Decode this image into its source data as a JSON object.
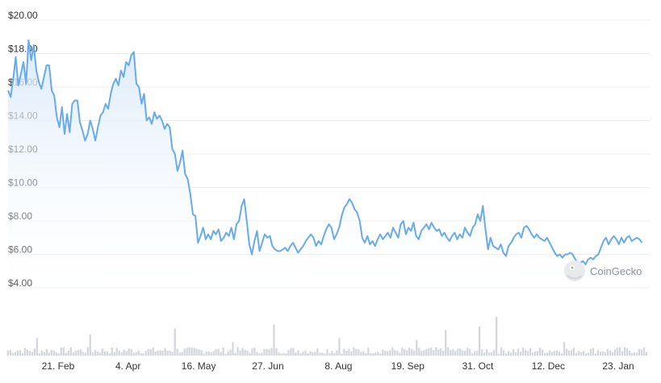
{
  "chart_data": {
    "type": "area",
    "ylim": [
      4,
      20
    ],
    "y_ticks": [
      {
        "value": 20,
        "label": "$20.00"
      },
      {
        "value": 18,
        "label": "$18.00"
      },
      {
        "value": 16,
        "label": "$16.00"
      },
      {
        "value": 14,
        "label": "$14.00"
      },
      {
        "value": 12,
        "label": "$12.00"
      },
      {
        "value": 10,
        "label": "$10.00"
      },
      {
        "value": 8,
        "label": "$8.00"
      },
      {
        "value": 6,
        "label": "$6.00"
      },
      {
        "value": 4,
        "label": "$4.00"
      }
    ],
    "x_ticks": [
      {
        "pos": 0.078,
        "label": "21. Feb"
      },
      {
        "pos": 0.187,
        "label": "4. Apr"
      },
      {
        "pos": 0.297,
        "label": "16. May"
      },
      {
        "pos": 0.405,
        "label": "27. Jun"
      },
      {
        "pos": 0.515,
        "label": "8. Aug"
      },
      {
        "pos": 0.623,
        "label": "19. Sep"
      },
      {
        "pos": 0.732,
        "label": "31. Oct"
      },
      {
        "pos": 0.842,
        "label": "12. Dec"
      },
      {
        "pos": 0.951,
        "label": "23. Jan"
      }
    ],
    "price": [
      [
        0.0,
        15.8
      ],
      [
        0.004,
        15.4
      ],
      [
        0.008,
        16.5
      ],
      [
        0.012,
        17.8
      ],
      [
        0.016,
        16.1
      ],
      [
        0.02,
        16.8
      ],
      [
        0.024,
        17.5
      ],
      [
        0.028,
        16.2
      ],
      [
        0.032,
        18.8
      ],
      [
        0.036,
        17.6
      ],
      [
        0.04,
        18.5
      ],
      [
        0.044,
        17.0
      ],
      [
        0.048,
        16.3
      ],
      [
        0.052,
        15.9
      ],
      [
        0.056,
        16.6
      ],
      [
        0.06,
        17.3
      ],
      [
        0.064,
        17.3
      ],
      [
        0.068,
        15.8
      ],
      [
        0.072,
        15.5
      ],
      [
        0.076,
        14.2
      ],
      [
        0.08,
        13.6
      ],
      [
        0.084,
        14.8
      ],
      [
        0.088,
        13.2
      ],
      [
        0.092,
        14.4
      ],
      [
        0.096,
        13.3
      ],
      [
        0.1,
        15.0
      ],
      [
        0.104,
        15.2
      ],
      [
        0.108,
        15.2
      ],
      [
        0.112,
        13.9
      ],
      [
        0.116,
        13.4
      ],
      [
        0.12,
        12.8
      ],
      [
        0.124,
        13.2
      ],
      [
        0.128,
        14.0
      ],
      [
        0.132,
        13.5
      ],
      [
        0.136,
        12.8
      ],
      [
        0.14,
        13.6
      ],
      [
        0.144,
        14.3
      ],
      [
        0.148,
        14.5
      ],
      [
        0.152,
        15.0
      ],
      [
        0.156,
        14.7
      ],
      [
        0.16,
        15.6
      ],
      [
        0.164,
        16.2
      ],
      [
        0.168,
        16.5
      ],
      [
        0.172,
        16.1
      ],
      [
        0.176,
        17.0
      ],
      [
        0.18,
        16.6
      ],
      [
        0.184,
        17.5
      ],
      [
        0.188,
        17.3
      ],
      [
        0.192,
        17.9
      ],
      [
        0.196,
        18.1
      ],
      [
        0.2,
        16.2
      ],
      [
        0.204,
        16.0
      ],
      [
        0.208,
        15.0
      ],
      [
        0.212,
        15.6
      ],
      [
        0.216,
        14.0
      ],
      [
        0.22,
        14.2
      ],
      [
        0.224,
        13.8
      ],
      [
        0.228,
        14.5
      ],
      [
        0.232,
        14.1
      ],
      [
        0.236,
        14.3
      ],
      [
        0.24,
        14.0
      ],
      [
        0.244,
        13.5
      ],
      [
        0.248,
        13.8
      ],
      [
        0.252,
        13.6
      ],
      [
        0.256,
        12.3
      ],
      [
        0.26,
        12.0
      ],
      [
        0.264,
        11.0
      ],
      [
        0.268,
        11.5
      ],
      [
        0.272,
        12.2
      ],
      [
        0.276,
        10.8
      ],
      [
        0.28,
        10.5
      ],
      [
        0.284,
        9.6
      ],
      [
        0.288,
        8.4
      ],
      [
        0.292,
        8.3
      ],
      [
        0.296,
        6.7
      ],
      [
        0.3,
        7.1
      ],
      [
        0.304,
        7.6
      ],
      [
        0.308,
        6.9
      ],
      [
        0.312,
        7.2
      ],
      [
        0.316,
        6.9
      ],
      [
        0.32,
        7.4
      ],
      [
        0.324,
        7.2
      ],
      [
        0.328,
        7.5
      ],
      [
        0.332,
        6.8
      ],
      [
        0.336,
        7.0
      ],
      [
        0.34,
        7.3
      ],
      [
        0.344,
        7.1
      ],
      [
        0.348,
        7.6
      ],
      [
        0.352,
        6.9
      ],
      [
        0.356,
        7.8
      ],
      [
        0.36,
        8.0
      ],
      [
        0.364,
        8.9
      ],
      [
        0.368,
        9.3
      ],
      [
        0.372,
        8.0
      ],
      [
        0.376,
        6.6
      ],
      [
        0.38,
        6.0
      ],
      [
        0.384,
        6.8
      ],
      [
        0.388,
        7.4
      ],
      [
        0.392,
        6.2
      ],
      [
        0.396,
        6.7
      ],
      [
        0.4,
        7.2
      ],
      [
        0.404,
        7.0
      ],
      [
        0.408,
        7.1
      ],
      [
        0.412,
        6.5
      ],
      [
        0.416,
        6.3
      ],
      [
        0.42,
        6.2
      ],
      [
        0.424,
        6.2
      ],
      [
        0.428,
        6.3
      ],
      [
        0.432,
        6.4
      ],
      [
        0.436,
        6.2
      ],
      [
        0.44,
        6.5
      ],
      [
        0.444,
        6.7
      ],
      [
        0.448,
        6.4
      ],
      [
        0.452,
        6.1
      ],
      [
        0.456,
        6.3
      ],
      [
        0.46,
        6.5
      ],
      [
        0.464,
        6.8
      ],
      [
        0.468,
        7.0
      ],
      [
        0.472,
        7.2
      ],
      [
        0.476,
        7.0
      ],
      [
        0.48,
        6.5
      ],
      [
        0.484,
        6.8
      ],
      [
        0.488,
        6.6
      ],
      [
        0.492,
        7.1
      ],
      [
        0.496,
        7.5
      ],
      [
        0.5,
        7.8
      ],
      [
        0.504,
        7.6
      ],
      [
        0.508,
        6.9
      ],
      [
        0.512,
        7.2
      ],
      [
        0.516,
        7.6
      ],
      [
        0.52,
        8.3
      ],
      [
        0.524,
        8.8
      ],
      [
        0.528,
        9.0
      ],
      [
        0.532,
        9.3
      ],
      [
        0.536,
        9.1
      ],
      [
        0.54,
        8.7
      ],
      [
        0.544,
        8.5
      ],
      [
        0.548,
        8.0
      ],
      [
        0.552,
        7.0
      ],
      [
        0.556,
        6.7
      ],
      [
        0.56,
        7.1
      ],
      [
        0.564,
        6.6
      ],
      [
        0.568,
        6.8
      ],
      [
        0.572,
        6.5
      ],
      [
        0.576,
        6.9
      ],
      [
        0.58,
        7.2
      ],
      [
        0.584,
        6.9
      ],
      [
        0.588,
        7.1
      ],
      [
        0.592,
        7.3
      ],
      [
        0.596,
        7.0
      ],
      [
        0.6,
        7.6
      ],
      [
        0.604,
        7.3
      ],
      [
        0.608,
        7.0
      ],
      [
        0.612,
        7.8
      ],
      [
        0.616,
        8.0
      ],
      [
        0.62,
        7.2
      ],
      [
        0.624,
        7.6
      ],
      [
        0.628,
        7.4
      ],
      [
        0.632,
        7.9
      ],
      [
        0.636,
        7.1
      ],
      [
        0.64,
        6.9
      ],
      [
        0.644,
        7.4
      ],
      [
        0.648,
        7.6
      ],
      [
        0.652,
        7.8
      ],
      [
        0.656,
        7.5
      ],
      [
        0.66,
        7.9
      ],
      [
        0.664,
        7.6
      ],
      [
        0.668,
        7.4
      ],
      [
        0.672,
        7.5
      ],
      [
        0.676,
        7.1
      ],
      [
        0.68,
        7.3
      ],
      [
        0.684,
        7.0
      ],
      [
        0.688,
        6.8
      ],
      [
        0.692,
        7.1
      ],
      [
        0.696,
        7.3
      ],
      [
        0.7,
        6.9
      ],
      [
        0.704,
        7.2
      ],
      [
        0.708,
        7.0
      ],
      [
        0.712,
        7.6
      ],
      [
        0.716,
        7.3
      ],
      [
        0.72,
        7.1
      ],
      [
        0.724,
        7.6
      ],
      [
        0.728,
        7.8
      ],
      [
        0.732,
        8.4
      ],
      [
        0.736,
        8.0
      ],
      [
        0.74,
        8.9
      ],
      [
        0.744,
        7.5
      ],
      [
        0.748,
        6.3
      ],
      [
        0.752,
        7.0
      ],
      [
        0.756,
        6.5
      ],
      [
        0.76,
        6.4
      ],
      [
        0.764,
        6.3
      ],
      [
        0.768,
        6.6
      ],
      [
        0.772,
        6.1
      ],
      [
        0.776,
        5.9
      ],
      [
        0.78,
        6.5
      ],
      [
        0.784,
        6.7
      ],
      [
        0.788,
        7.0
      ],
      [
        0.792,
        7.2
      ],
      [
        0.796,
        7.3
      ],
      [
        0.8,
        7.0
      ],
      [
        0.804,
        7.6
      ],
      [
        0.808,
        7.7
      ],
      [
        0.812,
        7.5
      ],
      [
        0.816,
        7.2
      ],
      [
        0.82,
        7.0
      ],
      [
        0.824,
        7.2
      ],
      [
        0.828,
        7.0
      ],
      [
        0.832,
        6.9
      ],
      [
        0.836,
        6.8
      ],
      [
        0.84,
        7.0
      ],
      [
        0.844,
        6.7
      ],
      [
        0.848,
        6.4
      ],
      [
        0.852,
        6.1
      ],
      [
        0.856,
        5.9
      ],
      [
        0.86,
        6.0
      ],
      [
        0.864,
        5.8
      ],
      [
        0.868,
        6.0
      ],
      [
        0.872,
        6.0
      ],
      [
        0.876,
        6.1
      ],
      [
        0.88,
        6.0
      ],
      [
        0.884,
        5.7
      ],
      [
        0.888,
        5.5
      ],
      [
        0.892,
        5.5
      ],
      [
        0.896,
        5.6
      ],
      [
        0.9,
        5.4
      ],
      [
        0.904,
        5.7
      ],
      [
        0.908,
        5.8
      ],
      [
        0.912,
        5.7
      ],
      [
        0.916,
        5.9
      ],
      [
        0.92,
        6.0
      ],
      [
        0.924,
        6.4
      ],
      [
        0.928,
        6.8
      ],
      [
        0.932,
        7.0
      ],
      [
        0.936,
        6.6
      ],
      [
        0.94,
        6.9
      ],
      [
        0.944,
        7.1
      ],
      [
        0.948,
        6.9
      ],
      [
        0.952,
        6.6
      ],
      [
        0.956,
        7.0
      ],
      [
        0.96,
        6.7
      ],
      [
        0.964,
        7.0
      ],
      [
        0.968,
        7.1
      ],
      [
        0.972,
        6.8
      ],
      [
        0.976,
        6.9
      ],
      [
        0.98,
        7.0
      ],
      [
        0.984,
        6.9
      ],
      [
        0.988,
        6.7
      ]
    ],
    "volume_seed": 7,
    "volume_spikes": [
      [
        0.044,
        0.45
      ],
      [
        0.128,
        0.55
      ],
      [
        0.26,
        0.7
      ],
      [
        0.352,
        0.35
      ],
      [
        0.416,
        0.8
      ],
      [
        0.52,
        0.45
      ],
      [
        0.64,
        0.4
      ],
      [
        0.684,
        0.65
      ],
      [
        0.74,
        0.75
      ],
      [
        0.764,
        1.0
      ],
      [
        0.872,
        0.35
      ]
    ],
    "grid": true,
    "colors": {
      "line": "#68aaea",
      "area_top": "#d7e8fa",
      "area_bottom": "#ffffff",
      "volume": "#d2d5da",
      "grid": "#e9ecef"
    }
  },
  "watermark": {
    "text": "CoinGecko",
    "icon": "gecko-logo-icon"
  }
}
